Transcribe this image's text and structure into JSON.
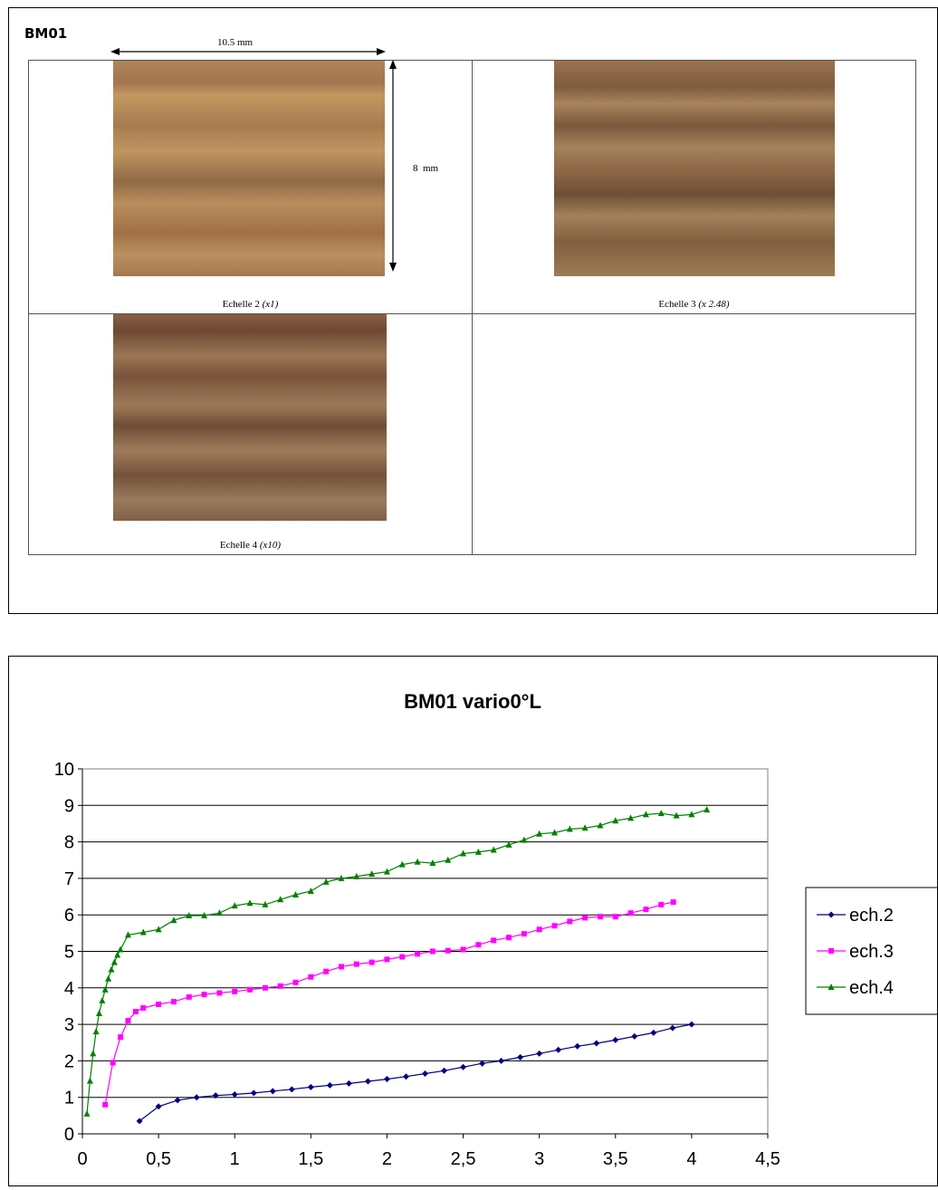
{
  "sample": {
    "id": "BM01",
    "dim_width": "10.5 mm",
    "dim_height": "8  mm",
    "panels": [
      {
        "label": "Echelle 2 ",
        "scale": "(x1)"
      },
      {
        "label": "Echelle 3 ",
        "scale": "(x 2.48)"
      },
      {
        "label": "Echelle 4 ",
        "scale": "(x10)"
      }
    ]
  },
  "chart_data": {
    "type": "line",
    "title": "BM01 vario0°L",
    "xlabel": "",
    "ylabel": "",
    "xlim": [
      0,
      4.5
    ],
    "ylim": [
      0,
      10
    ],
    "x_ticks": [
      "0",
      "0,5",
      "1",
      "1,5",
      "2",
      "2,5",
      "3",
      "3,5",
      "4",
      "4,5"
    ],
    "y_ticks": [
      "0",
      "1",
      "2",
      "3",
      "4",
      "5",
      "6",
      "7",
      "8",
      "9",
      "10"
    ],
    "grid": "horizontal",
    "legend_position": "right",
    "series": [
      {
        "name": "ech.2",
        "color": "#000080",
        "marker": "diamond",
        "x": [
          0.375,
          0.5,
          0.625,
          0.75,
          0.875,
          1.0,
          1.125,
          1.25,
          1.375,
          1.5,
          1.625,
          1.75,
          1.875,
          2.0,
          2.125,
          2.25,
          2.375,
          2.5,
          2.625,
          2.75,
          2.875,
          3.0,
          3.125,
          3.25,
          3.375,
          3.5,
          3.625,
          3.75,
          3.875,
          4.0
        ],
        "y": [
          0.35,
          0.75,
          0.92,
          1.0,
          1.05,
          1.08,
          1.12,
          1.17,
          1.22,
          1.28,
          1.33,
          1.38,
          1.44,
          1.5,
          1.57,
          1.65,
          1.73,
          1.83,
          1.93,
          2.0,
          2.1,
          2.2,
          2.3,
          2.4,
          2.48,
          2.57,
          2.67,
          2.77,
          2.9,
          3.0
        ]
      },
      {
        "name": "ech.3",
        "color": "#FF00FF",
        "marker": "square",
        "x": [
          0.15,
          0.2,
          0.25,
          0.3,
          0.35,
          0.4,
          0.5,
          0.6,
          0.7,
          0.8,
          0.9,
          1.0,
          1.1,
          1.2,
          1.3,
          1.4,
          1.5,
          1.6,
          1.7,
          1.8,
          1.9,
          2.0,
          2.1,
          2.2,
          2.3,
          2.4,
          2.5,
          2.6,
          2.7,
          2.8,
          2.9,
          3.0,
          3.1,
          3.2,
          3.3,
          3.4,
          3.5,
          3.6,
          3.7,
          3.8,
          3.88
        ],
        "y": [
          0.8,
          1.95,
          2.65,
          3.1,
          3.35,
          3.45,
          3.55,
          3.62,
          3.75,
          3.82,
          3.86,
          3.9,
          3.95,
          4.0,
          4.05,
          4.15,
          4.3,
          4.45,
          4.58,
          4.65,
          4.7,
          4.78,
          4.85,
          4.93,
          5.0,
          5.02,
          5.05,
          5.18,
          5.3,
          5.38,
          5.48,
          5.6,
          5.7,
          5.82,
          5.92,
          5.95,
          5.95,
          6.05,
          6.15,
          6.28,
          6.35
        ]
      },
      {
        "name": "ech.4",
        "color": "#008000",
        "marker": "triangle",
        "x": [
          0.03,
          0.05,
          0.07,
          0.09,
          0.11,
          0.13,
          0.15,
          0.17,
          0.19,
          0.21,
          0.23,
          0.25,
          0.3,
          0.4,
          0.5,
          0.6,
          0.7,
          0.8,
          0.9,
          1.0,
          1.1,
          1.2,
          1.3,
          1.4,
          1.5,
          1.6,
          1.7,
          1.8,
          1.9,
          2.0,
          2.1,
          2.2,
          2.3,
          2.4,
          2.5,
          2.6,
          2.7,
          2.8,
          2.9,
          3.0,
          3.1,
          3.2,
          3.3,
          3.4,
          3.5,
          3.6,
          3.7,
          3.8,
          3.9,
          4.0,
          4.1
        ],
        "y": [
          0.55,
          1.45,
          2.2,
          2.8,
          3.3,
          3.65,
          3.95,
          4.25,
          4.5,
          4.7,
          4.9,
          5.05,
          5.45,
          5.52,
          5.6,
          5.85,
          5.98,
          5.98,
          6.05,
          6.25,
          6.32,
          6.28,
          6.42,
          6.55,
          6.65,
          6.9,
          7.0,
          7.05,
          7.12,
          7.18,
          7.38,
          7.45,
          7.42,
          7.5,
          7.68,
          7.72,
          7.78,
          7.92,
          8.05,
          8.22,
          8.25,
          8.35,
          8.38,
          8.45,
          8.58,
          8.65,
          8.75,
          8.78,
          8.72,
          8.75,
          8.88
        ]
      }
    ]
  }
}
